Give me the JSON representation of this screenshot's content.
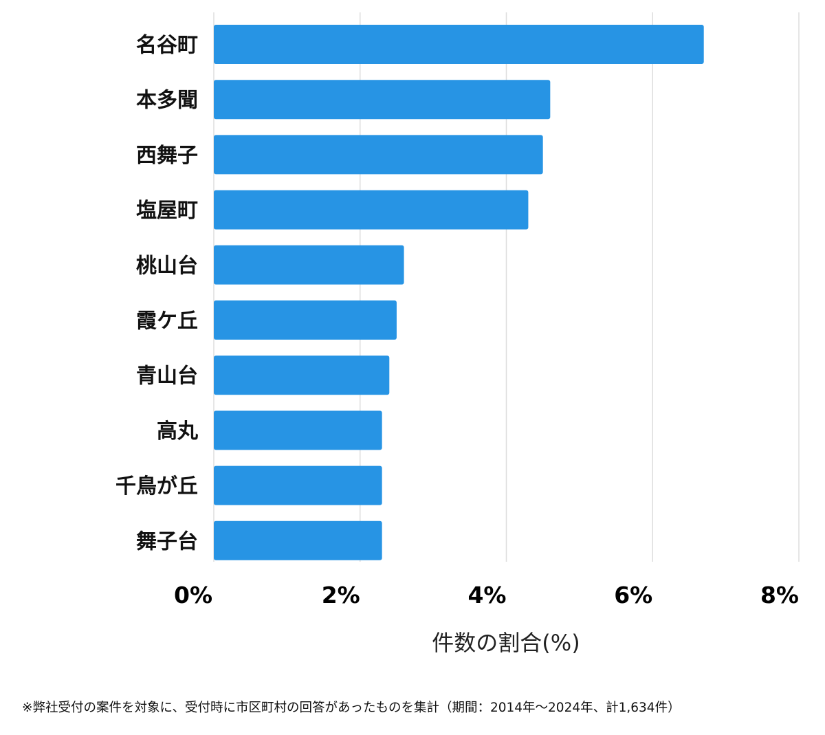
{
  "chart_data": {
    "type": "bar",
    "orientation": "horizontal",
    "categories": [
      "名谷町",
      "本多聞",
      "西舞子",
      "塩屋町",
      "桃山台",
      "霞ケ丘",
      "青山台",
      "高丸",
      "千鳥が丘",
      "舞子台"
    ],
    "values": [
      6.7,
      4.6,
      4.5,
      4.3,
      2.6,
      2.5,
      2.4,
      2.3,
      2.3,
      2.3
    ],
    "xlim": [
      0,
      8
    ],
    "xticks": [
      0,
      2,
      4,
      6,
      8
    ],
    "xtick_labels": [
      "0%",
      "2%",
      "4%",
      "6%",
      "8%"
    ],
    "xlabel": "件数の割合(%)",
    "ylabel": "",
    "title": "",
    "grid": "vertical",
    "legend": "none",
    "bar_color": "#2794e4",
    "grid_color": "#dddddd"
  },
  "footnote": "※弊社受付の案件を対象に、受付時に市区町村の回答があったものを集計（期間：2014年〜2024年、計1,634件）"
}
